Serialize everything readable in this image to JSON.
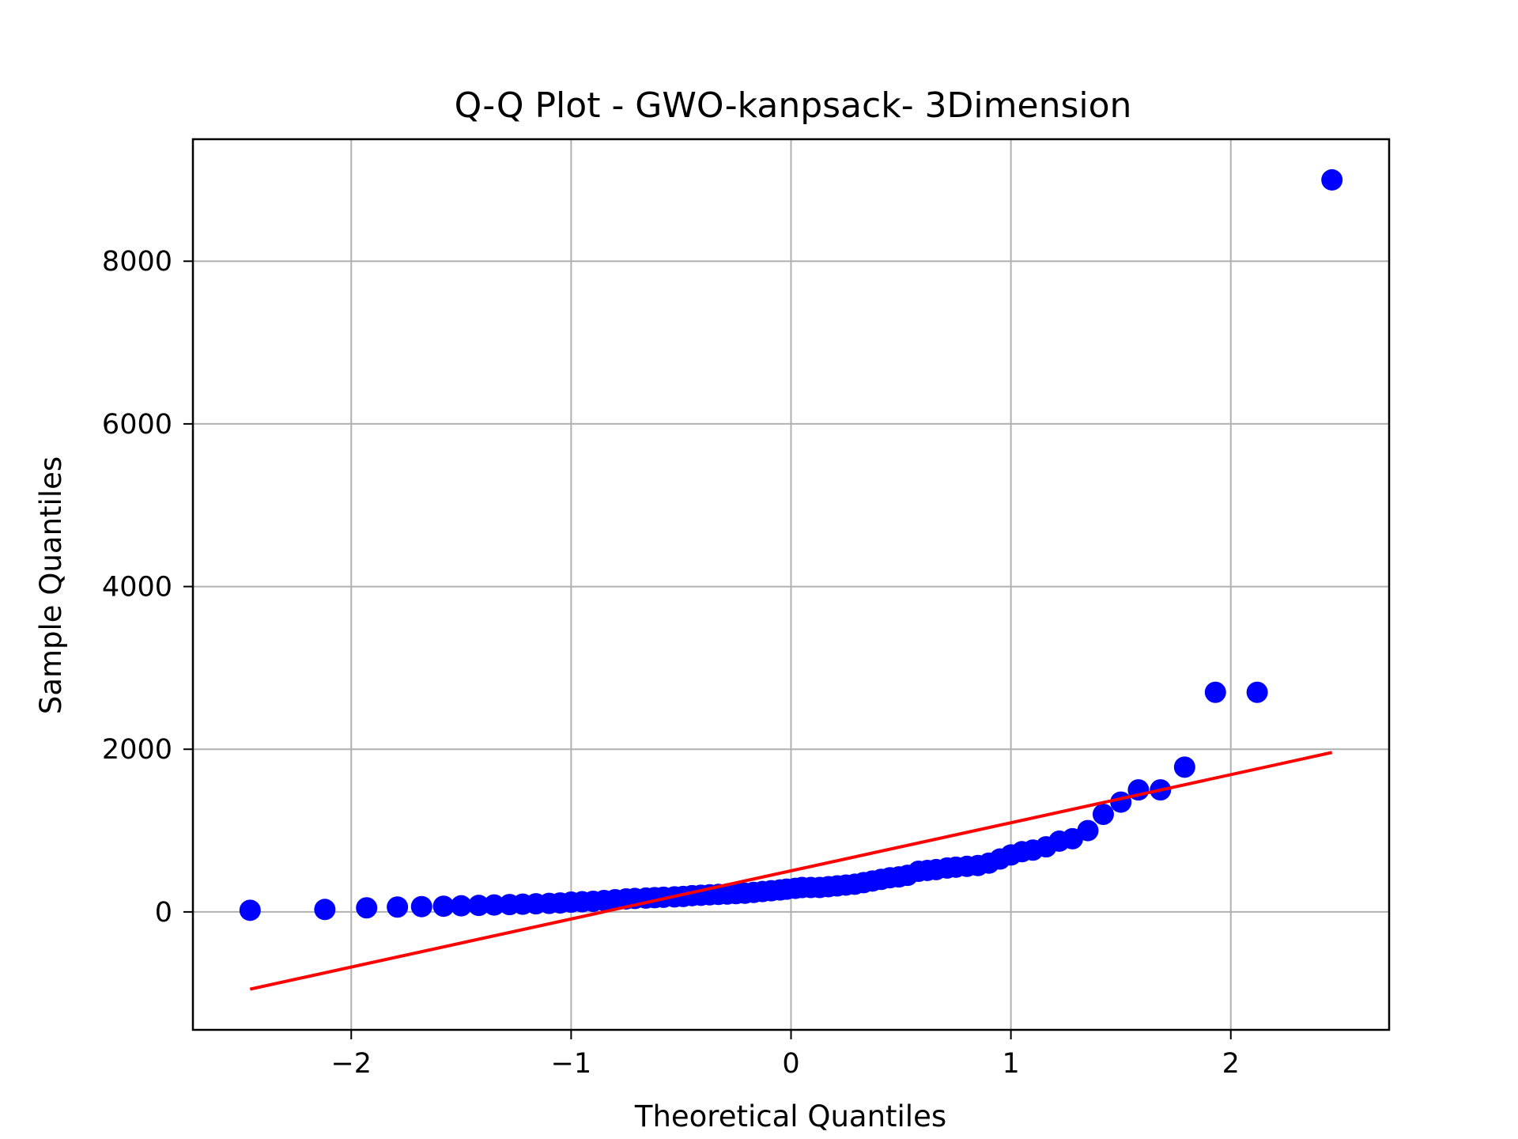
{
  "chart_data": {
    "type": "scatter",
    "title": "Q-Q Plot - GWO-kanpsack- 3Dimension",
    "xlabel": "Theoretical Quantiles",
    "ylabel": "Sample Quantiles",
    "xlim": [
      -2.72,
      2.72
    ],
    "ylim": [
      -1450,
      9500
    ],
    "grid": true,
    "x_ticks": [
      -2,
      -1,
      0,
      1,
      2
    ],
    "x_tick_labels": [
      "−2",
      "−1",
      "0",
      "1",
      "2"
    ],
    "y_ticks": [
      0,
      2000,
      4000,
      6000,
      8000
    ],
    "y_tick_labels": [
      "0",
      "2000",
      "4000",
      "6000",
      "8000"
    ],
    "colors": {
      "points": "#0000ff",
      "line": "#ff0000",
      "grid": "#b0b0b0"
    },
    "series": [
      {
        "kind": "points",
        "x": [
          -2.46,
          -2.12,
          -1.93,
          -1.79,
          -1.68,
          -1.58,
          -1.5,
          -1.42,
          -1.35,
          -1.28,
          -1.22,
          -1.16,
          -1.1,
          -1.05,
          -1.0,
          -0.95,
          -0.9,
          -0.85,
          -0.8,
          -0.75,
          -0.71,
          -0.66,
          -0.62,
          -0.58,
          -0.53,
          -0.49,
          -0.45,
          -0.41,
          -0.37,
          -0.33,
          -0.29,
          -0.25,
          -0.21,
          -0.17,
          -0.13,
          -0.09,
          -0.05,
          -0.02,
          0.02,
          0.05,
          0.09,
          0.13,
          0.17,
          0.21,
          0.25,
          0.29,
          0.33,
          0.37,
          0.41,
          0.45,
          0.49,
          0.53,
          0.58,
          0.62,
          0.66,
          0.71,
          0.75,
          0.8,
          0.85,
          0.9,
          0.95,
          1.0,
          1.05,
          1.1,
          1.16,
          1.22,
          1.28,
          1.35,
          1.42,
          1.5,
          1.58,
          1.68,
          1.79,
          1.93,
          2.12,
          2.46
        ],
        "y": [
          20,
          30,
          50,
          60,
          65,
          70,
          75,
          80,
          85,
          90,
          95,
          100,
          105,
          110,
          120,
          125,
          130,
          140,
          150,
          160,
          165,
          170,
          175,
          180,
          185,
          190,
          200,
          205,
          210,
          215,
          220,
          225,
          230,
          240,
          250,
          260,
          270,
          280,
          290,
          300,
          300,
          300,
          310,
          320,
          330,
          340,
          360,
          380,
          400,
          420,
          430,
          450,
          500,
          510,
          520,
          540,
          550,
          560,
          570,
          600,
          650,
          700,
          740,
          760,
          800,
          870,
          900,
          1000,
          1200,
          1350,
          1500,
          1500,
          1780,
          2700,
          2700,
          9000
        ]
      },
      {
        "kind": "line",
        "x": [
          -2.46,
          2.46
        ],
        "y": [
          -950,
          1960
        ]
      }
    ]
  }
}
